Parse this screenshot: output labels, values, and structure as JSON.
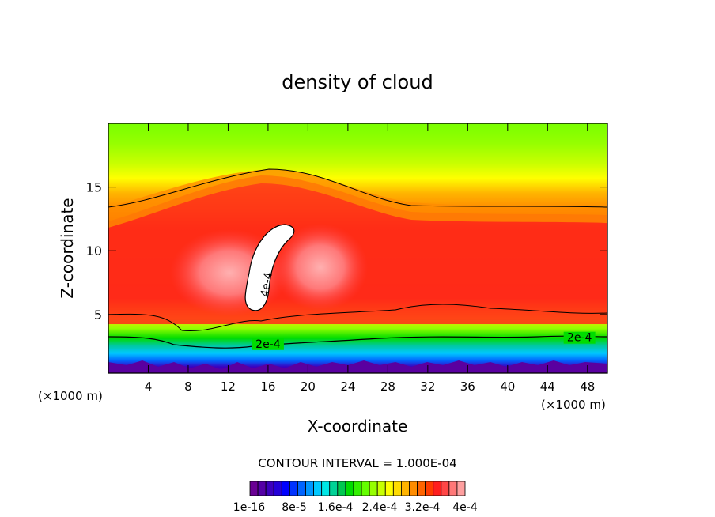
{
  "chart_data": {
    "type": "heatmap",
    "title": "density of cloud",
    "xlabel": "X-coordinate",
    "ylabel": "Z-coordinate",
    "x_unit": "(×1000 m)",
    "x_unit_right": "(×1000 m)",
    "xlim": [
      0,
      50
    ],
    "ylim": [
      0.4,
      20
    ],
    "xticks": [
      4,
      8,
      12,
      16,
      20,
      24,
      28,
      32,
      36,
      40,
      44,
      48
    ],
    "yticks": [
      5,
      10,
      15
    ],
    "contour_interval_text": "CONTOUR INTERVAL = 1.000E-04",
    "contour_labels": [
      {
        "text": "4e-4",
        "x": 16.2,
        "z": 7.3
      },
      {
        "text": "2e-4",
        "x": 16.0,
        "z": 2.4
      },
      {
        "text": "2e-4",
        "x": 47.2,
        "z": 2.9
      }
    ],
    "colorbar": {
      "colors": [
        "#6a0094",
        "#5400a6",
        "#3c00be",
        "#2400d8",
        "#0000ff",
        "#0032ff",
        "#0064ff",
        "#0096ff",
        "#00c8ff",
        "#00e6e6",
        "#00d296",
        "#00c850",
        "#00dc00",
        "#32f000",
        "#64ff00",
        "#96ff00",
        "#c8ff00",
        "#ffff00",
        "#ffdc00",
        "#ffb400",
        "#ff8c00",
        "#ff6400",
        "#ff3c00",
        "#ff1e1e",
        "#ff4646",
        "#ff7878",
        "#ffa0a0"
      ],
      "tick_labels": [
        "1e-16",
        "8e-5",
        "1.6e-4",
        "2.4e-4",
        "3.2e-4",
        "4e-4"
      ]
    }
  }
}
